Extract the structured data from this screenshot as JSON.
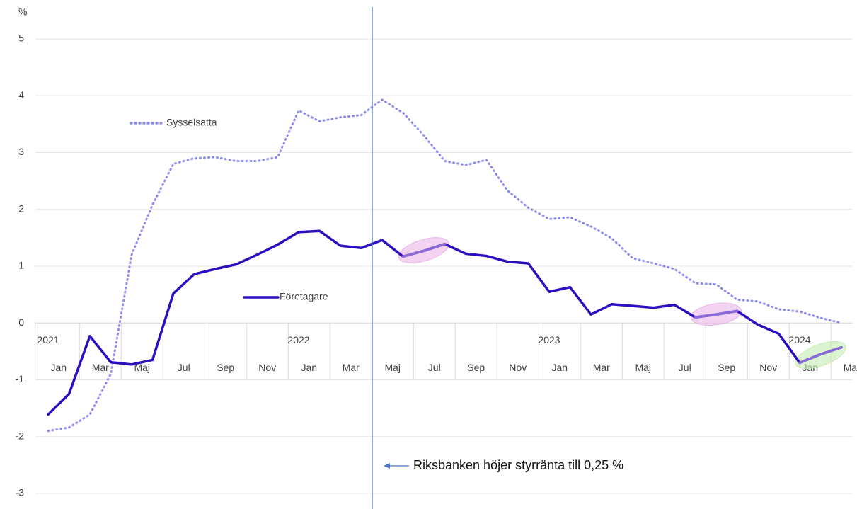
{
  "chart_data": {
    "type": "line",
    "y_unit": "%",
    "categories": [
      "Jan",
      null,
      "Mar",
      null,
      "Maj",
      null,
      "Jul",
      null,
      "Sep",
      null,
      "Nov",
      null,
      "Jan",
      null,
      "Mar",
      null,
      "Maj",
      null,
      "Jul",
      null,
      "Sep",
      null,
      "Nov",
      null,
      "Jan",
      null,
      "Mar",
      null,
      "Maj",
      null,
      "Jul",
      null,
      "Sep",
      null,
      "Nov",
      null,
      "Jan",
      null,
      "Mar"
    ],
    "years": [
      "2021",
      "2022",
      "2023",
      "2024"
    ],
    "series": [
      {
        "name": "Sysselsatta",
        "color": "#8c8cf2",
        "dash": true,
        "values": [
          -1.9,
          -1.84,
          -1.61,
          -0.9,
          1.2,
          2.08,
          2.8,
          2.9,
          2.92,
          2.85,
          2.85,
          2.92,
          3.74,
          3.55,
          3.62,
          3.66,
          3.93,
          3.7,
          3.3,
          2.85,
          2.78,
          2.87,
          2.33,
          2.03,
          1.83,
          1.86,
          1.7,
          1.49,
          1.14,
          1.05,
          0.95,
          0.7,
          0.68,
          0.41,
          0.38,
          0.24,
          0.2,
          0.09,
          0
        ]
      },
      {
        "name": "Företagare",
        "color": "#2e0fc0",
        "dash": false,
        "values": [
          -1.61,
          -1.25,
          -0.23,
          -0.69,
          -0.73,
          -0.65,
          0.52,
          0.86,
          0.95,
          1.03,
          1.2,
          1.38,
          1.6,
          1.62,
          1.36,
          1.32,
          1.46,
          1.17,
          1.27,
          1.39,
          1.22,
          1.18,
          1.08,
          1.05,
          0.55,
          0.63,
          0.15,
          0.33,
          0.3,
          0.27,
          0.32,
          0.1,
          0.15,
          0.21,
          -0.03,
          -0.19,
          -0.7,
          -0.55,
          -0.43
        ]
      }
    ],
    "highlights": [
      {
        "series": 1,
        "from": 17,
        "to": 19,
        "color": "#e9b6e9"
      },
      {
        "series": 1,
        "from": 31,
        "to": 33,
        "color": "#e9b6e9"
      },
      {
        "series": 1,
        "from": 36,
        "to": 38,
        "color": "#c6ecb4"
      }
    ],
    "annotation": "Riksbanken höjer styrränta till 0,25 %",
    "ylim": [
      -3,
      5
    ],
    "yticks": [
      -3,
      -2,
      -1,
      0,
      1,
      2,
      3,
      4,
      5
    ],
    "grid": true
  }
}
